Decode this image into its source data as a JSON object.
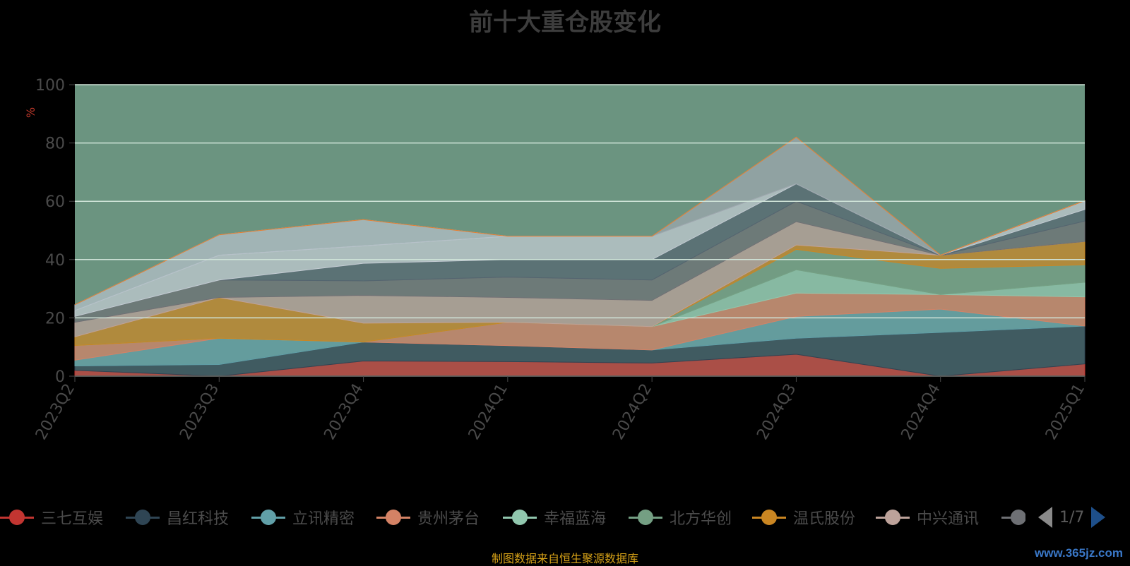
{
  "chart_data": {
    "type": "area",
    "title": "前十大重仓股变化",
    "ylabel": "%",
    "ylim": [
      0,
      100
    ],
    "yticks": [
      0,
      20,
      40,
      60,
      80,
      100
    ],
    "categories": [
      "2023Q2",
      "2023Q3",
      "2023Q4",
      "2024Q1",
      "2024Q2",
      "2024Q3",
      "2024Q4",
      "2025Q1"
    ],
    "grid": true,
    "background_color": "#6b9480",
    "series": [
      {
        "name": "三七互娱",
        "color": "#c23531",
        "values": [
          2,
          0,
          5.2,
          5,
          4.5,
          7.5,
          0,
          4.2
        ]
      },
      {
        "name": "昌红科技",
        "color": "#2f4554",
        "values": [
          1.5,
          4,
          6.5,
          5.5,
          4.5,
          5.5,
          15,
          13
        ]
      },
      {
        "name": "立讯精密",
        "color": "#61a0a8",
        "values": [
          2,
          9,
          0,
          0,
          0,
          7.5,
          8,
          0
        ]
      },
      {
        "name": "贵州茅台",
        "color": "#d48265",
        "values": [
          5,
          0,
          0,
          8,
          8,
          8,
          5,
          10
        ]
      },
      {
        "name": "幸福蓝海",
        "color": "#91c7ae",
        "values": [
          0,
          0,
          0,
          0,
          0,
          8,
          0,
          5
        ]
      },
      {
        "name": "北方华创",
        "color": "#749f83",
        "values": [
          0,
          0,
          0,
          0,
          0,
          7,
          9,
          6
        ]
      },
      {
        "name": "温氏股份",
        "color": "#ca8622",
        "values": [
          3,
          14,
          6.5,
          0,
          0,
          1.5,
          4.5,
          8
        ]
      },
      {
        "name": "中兴通讯",
        "color": "#bda29a",
        "values": [
          5,
          0,
          9.5,
          8.5,
          9,
          8,
          0,
          0
        ]
      },
      {
        "name": "",
        "color": "#6e7074",
        "values": [
          2,
          6,
          5,
          7,
          7,
          7,
          0,
          7
        ]
      },
      {
        "name": "",
        "color": "#546570",
        "values": [
          0,
          0,
          6,
          6,
          7,
          6,
          0,
          4
        ]
      },
      {
        "name": "",
        "color": "#c4ccd3",
        "values": [
          2,
          8.5,
          6,
          8,
          8,
          0,
          0,
          3
        ]
      },
      {
        "name": "",
        "color": "#b6c1c9",
        "values": [
          2,
          7,
          9,
          0,
          0,
          0,
          0,
          0
        ]
      },
      {
        "name": "",
        "color": "#9ea7ae",
        "values": [
          0,
          0,
          0,
          0,
          0,
          16,
          0,
          0
        ]
      },
      {
        "name": "",
        "color": "#ea7e2c",
        "values": [
          0,
          0,
          0,
          0,
          0,
          0,
          0,
          0
        ]
      }
    ]
  },
  "legend_visible": [
    "三七互娱",
    "昌红科技",
    "立讯精密",
    "贵州茅台",
    "幸福蓝海",
    "北方华创",
    "温氏股份",
    "中兴通讯"
  ],
  "pager": {
    "text": "1/7"
  },
  "source_note": "制图数据来自恒生聚源数据库",
  "watermark": "www.365jz.com"
}
